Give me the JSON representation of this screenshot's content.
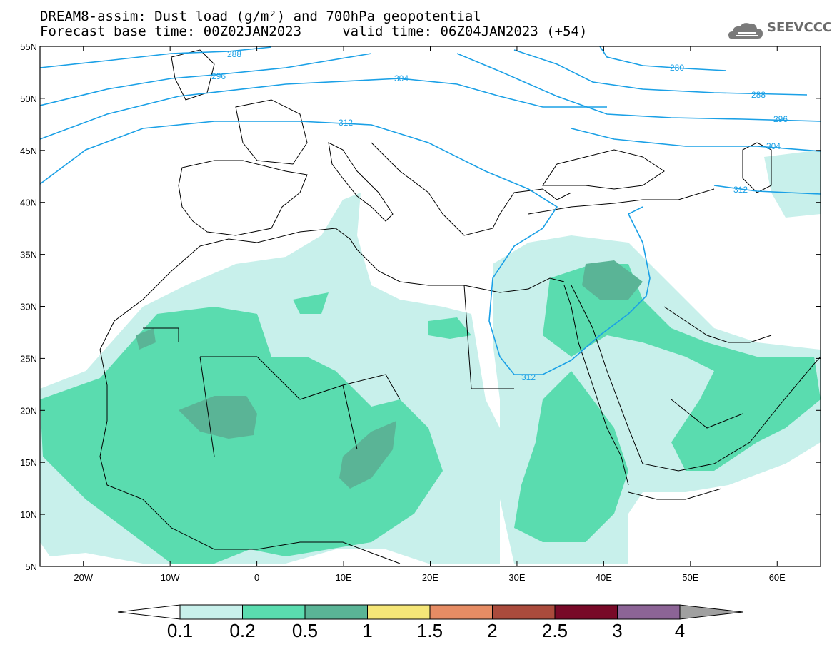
{
  "title": {
    "line1": "DREAM8-assim: Dust load (g/m²) and 700hPa geopotential",
    "line2": "Forecast base time: 00Z02JAN2023     valid time: 06Z04JAN2023 (+54)"
  },
  "logo": {
    "text": "SEEVCCC",
    "icon": "cloud-icon"
  },
  "map": {
    "lon_range": [
      -25,
      65
    ],
    "lat_range": [
      5,
      55
    ],
    "lat_ticks": [
      "55N",
      "50N",
      "45N",
      "40N",
      "35N",
      "30N",
      "25N",
      "20N",
      "15N",
      "10N",
      "5N"
    ],
    "lon_ticks": [
      "20W",
      "10W",
      "0",
      "10E",
      "20E",
      "30E",
      "40E",
      "50E",
      "60E"
    ],
    "contour_labels": [
      "288",
      "296",
      "304",
      "312",
      "280",
      "288",
      "296",
      "304",
      "312",
      "312"
    ],
    "contour_color": "#1aa0e6"
  },
  "colorbar": {
    "ticks": [
      "0.1",
      "0.2",
      "0.5",
      "1",
      "1.5",
      "2",
      "2.5",
      "3",
      "4"
    ],
    "colors": [
      "#c8f0eb",
      "#5adcaf",
      "#5ab496",
      "#f5e678",
      "#e68c64",
      "#aa4b3c",
      "#780a28",
      "#8c6496"
    ],
    "over_color": "#a0a0a0",
    "under_color": "#ffffff"
  }
}
